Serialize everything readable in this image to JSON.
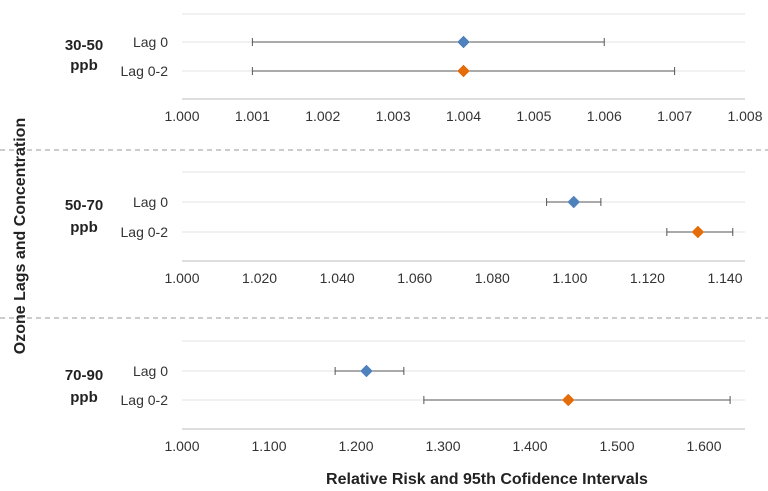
{
  "chart_data": {
    "type": "forest",
    "xlabel": "Relative Risk and 95th Cofidence Intervals",
    "ylabel": "Ozone Lags and Concentration",
    "marker_shape": "diamond",
    "colors": {
      "Lag 0": "#4f81bd",
      "Lag 0-2": "#e46c0a"
    },
    "panels": [
      {
        "group": "30-50 ppb",
        "group_lines": [
          "30-50",
          "ppb"
        ],
        "xlim": [
          1.0,
          1.008
        ],
        "ticks": [
          "1.000",
          "1.001",
          "1.002",
          "1.003",
          "1.004",
          "1.005",
          "1.006",
          "1.007",
          "1.008"
        ],
        "rows": [
          {
            "label": "Lag 0",
            "estimate": 1.004,
            "lower": 1.001,
            "upper": 1.006
          },
          {
            "label": "Lag 0-2",
            "estimate": 1.004,
            "lower": 1.001,
            "upper": 1.007
          }
        ]
      },
      {
        "group": "50-70 ppb",
        "group_lines": [
          "50-70",
          "ppb"
        ],
        "xlim": [
          1.0,
          1.14
        ],
        "ticks": [
          "1.000",
          "1.020",
          "1.040",
          "1.060",
          "1.080",
          "1.100",
          "1.120",
          "1.140"
        ],
        "rows": [
          {
            "label": "Lag 0",
            "estimate": 1.101,
            "lower": 1.094,
            "upper": 1.108
          },
          {
            "label": "Lag 0-2",
            "estimate": 1.133,
            "lower": 1.125,
            "upper": 1.142
          }
        ]
      },
      {
        "group": "70-90 ppb",
        "group_lines": [
          "70-90",
          "ppb"
        ],
        "xlim": [
          1.0,
          1.6
        ],
        "ticks": [
          "1.000",
          "1.100",
          "1.200",
          "1.300",
          "1.400",
          "1.500",
          "1.600"
        ],
        "rows": [
          {
            "label": "Lag 0",
            "estimate": 1.212,
            "lower": 1.176,
            "upper": 1.255
          },
          {
            "label": "Lag 0-2",
            "estimate": 1.444,
            "lower": 1.278,
            "upper": 1.63
          }
        ]
      }
    ]
  }
}
